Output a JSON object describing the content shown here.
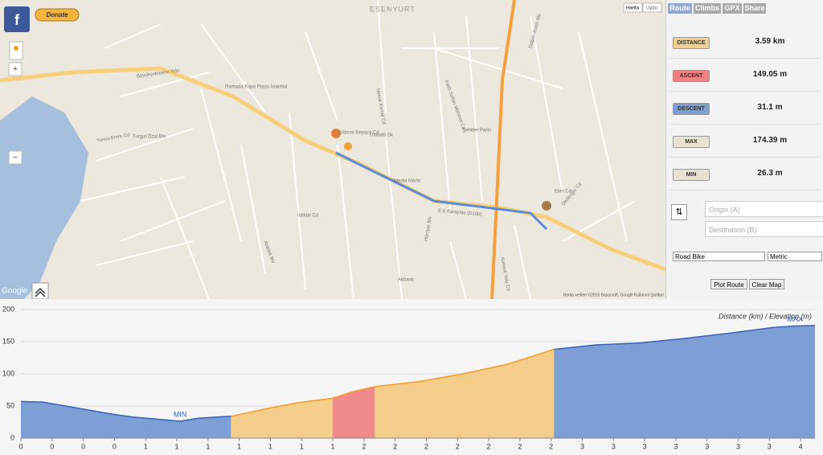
{
  "map": {
    "donate": "Donate",
    "map_type": [
      "Harita",
      "Uydu"
    ],
    "zoom_in": "+",
    "zoom_out": "−",
    "google": "Google",
    "attribution": "Harita verileri ©2015 Basarsoft, Google   Kullanım Şartları",
    "labels": [
      "ESENYURT",
      "Ramada Kaya Plaza İstanbul",
      "Media Markt",
      "Akbank",
      "E-5 Karayolu (D100)",
      "Büyükçekmece Yolu",
      "Turgut Özal Blv",
      "Atatürk Blv",
      "İstiklal Cd",
      "Fatih Sultan Mehmet Cd",
      "Doğan Araslı Blv",
      "Yıldırım Beyazıt Cd",
      "Şehitler Parkı",
      "Hürriyet Blv",
      "Kumsal Yolu Cd",
      "Ekin Cd",
      "Ulubatlı Sk",
      "Namık Kemal Cd",
      "Dedeoğlu Cd",
      "Yunus Emre Cd"
    ]
  },
  "tabs": [
    "Route",
    "Climbs",
    "GPX",
    "Share"
  ],
  "stats": [
    {
      "label": "DISTANCE",
      "value": "3.59 km",
      "color": "#f1cf8f"
    },
    {
      "label": "ASCENT",
      "value": "149.05 m",
      "color": "#f07f7f"
    },
    {
      "label": "DESCENT",
      "value": "31.1 m",
      "color": "#7e9fd6"
    },
    {
      "label": "MAX",
      "value": "174.39 m",
      "color": "#e8e2d2"
    },
    {
      "label": "MIN",
      "value": "26.3 m",
      "color": "#e8e2d2"
    }
  ],
  "form": {
    "swap": "⇅",
    "origin": "Origin (A)",
    "destination": "Destination (B)",
    "profile": "Road Bike",
    "units": "Metric",
    "plot": "Plot Route",
    "clear": "Clear Map"
  },
  "chart_data": {
    "type": "area",
    "title": "Distance (km) / Elevation (m)",
    "xlim": [
      0,
      3.59
    ],
    "ylim": [
      0,
      200
    ],
    "yticks": [
      0,
      50,
      100,
      150,
      200
    ],
    "grid": true,
    "xticks": [
      0,
      {
        "value": 0.141,
        "label": "0"
      },
      {
        "value": 0.282,
        "label": "0"
      },
      {
        "value": 0.423,
        "label": "0"
      },
      {
        "value": 0.564,
        "label": "1"
      },
      {
        "value": 0.705,
        "label": "1"
      },
      {
        "value": 0.846,
        "label": "1"
      },
      {
        "value": 0.987,
        "label": "1"
      },
      {
        "value": 1.128,
        "label": "1"
      },
      {
        "value": 1.269,
        "label": "1"
      },
      {
        "value": 1.41,
        "label": "1"
      },
      {
        "value": 1.551,
        "label": "2"
      },
      {
        "value": 1.692,
        "label": "2"
      },
      {
        "value": 1.833,
        "label": "2"
      },
      {
        "value": 1.974,
        "label": "2"
      },
      {
        "value": 2.115,
        "label": "2"
      },
      {
        "value": 2.256,
        "label": "2"
      },
      {
        "value": 2.397,
        "label": "2"
      },
      {
        "value": 2.538,
        "label": "3"
      },
      {
        "value": 2.679,
        "label": "3"
      },
      {
        "value": 2.82,
        "label": "3"
      },
      {
        "value": 2.961,
        "label": "3"
      },
      {
        "value": 3.102,
        "label": "3"
      },
      {
        "value": 3.243,
        "label": "3"
      },
      {
        "value": 3.384,
        "label": "3"
      },
      {
        "value": 3.525,
        "label": "4"
      }
    ],
    "series": [
      {
        "color": "#7e9fd6",
        "line_color": "#3563b5",
        "x": [
          0,
          0.1,
          0.2,
          0.3,
          0.4,
          0.5,
          0.6,
          0.72,
          0.8,
          0.95
        ],
        "values": [
          57,
          56,
          50,
          44,
          38,
          33,
          30,
          26.3,
          31,
          34
        ]
      },
      {
        "color": "#f5cf8a",
        "line_color": "#f39a2a",
        "x": [
          0.95,
          1.1,
          1.25,
          1.41
        ],
        "values": [
          34,
          45,
          55,
          62
        ]
      },
      {
        "color": "#f08a8a",
        "line_color": "#f39a2a",
        "x": [
          1.41,
          1.5,
          1.6
        ],
        "values": [
          62,
          72,
          80
        ]
      },
      {
        "color": "#f5cf8a",
        "line_color": "#f39a2a",
        "x": [
          1.6,
          1.8,
          2.0,
          2.2,
          2.41
        ],
        "values": [
          80,
          88,
          100,
          115,
          138
        ]
      },
      {
        "color": "#7e9fd6",
        "line_color": "#3563b5",
        "x": [
          2.41,
          2.6,
          2.8,
          3.0,
          3.2,
          3.4,
          3.5,
          3.59
        ],
        "values": [
          138,
          145,
          148,
          155,
          163,
          172,
          174.39,
          175
        ]
      }
    ],
    "annotations": [
      {
        "text": "MIN",
        "x": 0.72,
        "y": 26.3
      },
      {
        "text": "MAX",
        "x": 3.5,
        "y": 174.39
      }
    ]
  }
}
